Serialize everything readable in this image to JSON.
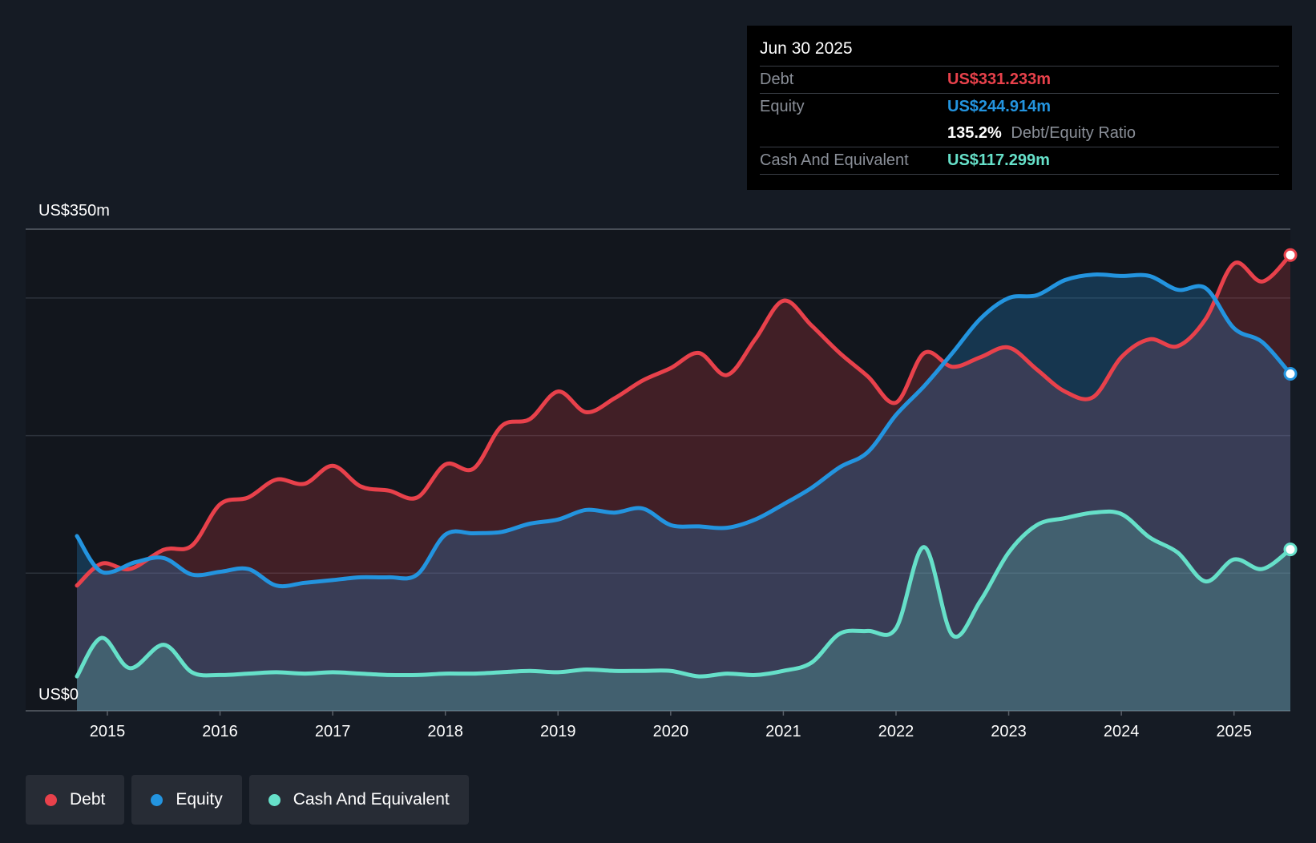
{
  "chart_data": {
    "type": "area",
    "title": "",
    "xlabel": "",
    "ylabel": "",
    "y_axis_labels": [
      "US$350m",
      "US$0"
    ],
    "ylim": [
      0,
      350
    ],
    "xlim": [
      2014.73,
      2025.5
    ],
    "x_ticks": [
      "2015",
      "2016",
      "2017",
      "2018",
      "2019",
      "2020",
      "2021",
      "2022",
      "2023",
      "2024",
      "2025"
    ],
    "gridlines": [
      0,
      100,
      200,
      300,
      350
    ],
    "series": [
      {
        "name": "Debt",
        "color": "#e8414b",
        "points": [
          [
            2014.73,
            91
          ],
          [
            2014.95,
            107
          ],
          [
            2015.2,
            103
          ],
          [
            2015.5,
            117
          ],
          [
            2015.75,
            120
          ],
          [
            2016.0,
            150
          ],
          [
            2016.25,
            155
          ],
          [
            2016.5,
            168
          ],
          [
            2016.75,
            165
          ],
          [
            2017.0,
            178
          ],
          [
            2017.25,
            163
          ],
          [
            2017.5,
            160
          ],
          [
            2017.75,
            155
          ],
          [
            2018.0,
            179
          ],
          [
            2018.25,
            176
          ],
          [
            2018.5,
            207
          ],
          [
            2018.75,
            212
          ],
          [
            2019.0,
            232
          ],
          [
            2019.25,
            217
          ],
          [
            2019.5,
            227
          ],
          [
            2019.75,
            240
          ],
          [
            2020.0,
            249
          ],
          [
            2020.25,
            260
          ],
          [
            2020.5,
            244
          ],
          [
            2020.75,
            270
          ],
          [
            2021.0,
            298
          ],
          [
            2021.25,
            280
          ],
          [
            2021.5,
            260
          ],
          [
            2021.75,
            243
          ],
          [
            2022.0,
            224
          ],
          [
            2022.25,
            260
          ],
          [
            2022.5,
            250
          ],
          [
            2022.75,
            257
          ],
          [
            2023.0,
            264
          ],
          [
            2023.25,
            248
          ],
          [
            2023.5,
            232
          ],
          [
            2023.75,
            228
          ],
          [
            2024.0,
            257
          ],
          [
            2024.25,
            270
          ],
          [
            2024.5,
            265
          ],
          [
            2024.75,
            285
          ],
          [
            2025.0,
            325
          ],
          [
            2025.25,
            312
          ],
          [
            2025.5,
            331.2
          ]
        ]
      },
      {
        "name": "Equity",
        "color": "#2394df",
        "points": [
          [
            2014.73,
            127
          ],
          [
            2014.95,
            101
          ],
          [
            2015.25,
            108
          ],
          [
            2015.5,
            111
          ],
          [
            2015.75,
            99
          ],
          [
            2016.0,
            101
          ],
          [
            2016.25,
            103
          ],
          [
            2016.5,
            91
          ],
          [
            2016.75,
            93
          ],
          [
            2017.0,
            95
          ],
          [
            2017.25,
            97
          ],
          [
            2017.5,
            97
          ],
          [
            2017.75,
            99
          ],
          [
            2018.0,
            128
          ],
          [
            2018.25,
            129
          ],
          [
            2018.5,
            130
          ],
          [
            2018.75,
            136
          ],
          [
            2019.0,
            139
          ],
          [
            2019.25,
            146
          ],
          [
            2019.5,
            144
          ],
          [
            2019.75,
            147
          ],
          [
            2020.0,
            135
          ],
          [
            2020.25,
            134
          ],
          [
            2020.5,
            133
          ],
          [
            2020.75,
            139
          ],
          [
            2021.0,
            150
          ],
          [
            2021.25,
            162
          ],
          [
            2021.5,
            177
          ],
          [
            2021.75,
            188
          ],
          [
            2022.0,
            215
          ],
          [
            2022.25,
            236
          ],
          [
            2022.5,
            260
          ],
          [
            2022.75,
            285
          ],
          [
            2023.0,
            300
          ],
          [
            2023.25,
            302
          ],
          [
            2023.5,
            313
          ],
          [
            2023.75,
            317
          ],
          [
            2024.0,
            316
          ],
          [
            2024.25,
            316
          ],
          [
            2024.5,
            306
          ],
          [
            2024.75,
            307
          ],
          [
            2025.0,
            278
          ],
          [
            2025.25,
            268
          ],
          [
            2025.5,
            244.9
          ]
        ]
      },
      {
        "name": "Cash And Equivalent",
        "color": "#66e0c9",
        "points": [
          [
            2014.73,
            25
          ],
          [
            2014.95,
            53
          ],
          [
            2015.2,
            31
          ],
          [
            2015.5,
            48
          ],
          [
            2015.75,
            28
          ],
          [
            2016.0,
            26
          ],
          [
            2016.25,
            27
          ],
          [
            2016.5,
            28
          ],
          [
            2016.75,
            27
          ],
          [
            2017.0,
            28
          ],
          [
            2017.25,
            27
          ],
          [
            2017.5,
            26
          ],
          [
            2017.75,
            26
          ],
          [
            2018.0,
            27
          ],
          [
            2018.25,
            27
          ],
          [
            2018.5,
            28
          ],
          [
            2018.75,
            29
          ],
          [
            2019.0,
            28
          ],
          [
            2019.25,
            30
          ],
          [
            2019.5,
            29
          ],
          [
            2019.75,
            29
          ],
          [
            2020.0,
            29
          ],
          [
            2020.25,
            25
          ],
          [
            2020.5,
            27
          ],
          [
            2020.75,
            26
          ],
          [
            2021.0,
            29
          ],
          [
            2021.25,
            35
          ],
          [
            2021.5,
            56
          ],
          [
            2021.75,
            58
          ],
          [
            2022.0,
            60
          ],
          [
            2022.25,
            119
          ],
          [
            2022.5,
            55
          ],
          [
            2022.75,
            80
          ],
          [
            2023.0,
            115
          ],
          [
            2023.25,
            135
          ],
          [
            2023.5,
            140
          ],
          [
            2023.75,
            144
          ],
          [
            2024.0,
            143
          ],
          [
            2024.25,
            126
          ],
          [
            2024.5,
            115
          ],
          [
            2024.75,
            94
          ],
          [
            2025.0,
            110
          ],
          [
            2025.25,
            103
          ],
          [
            2025.5,
            117.3
          ]
        ]
      }
    ]
  },
  "tooltip": {
    "date": "Jun 30 2025",
    "debt_label": "Debt",
    "debt_value": "US$331.233m",
    "equity_label": "Equity",
    "equity_value": "US$244.914m",
    "ratio_value": "135.2%",
    "ratio_label": "Debt/Equity Ratio",
    "cash_label": "Cash And Equivalent",
    "cash_value": "US$117.299m"
  },
  "legend": {
    "debt": "Debt",
    "equity": "Equity",
    "cash": "Cash And Equivalent"
  },
  "colors": {
    "debt": "#e8414b",
    "equity": "#2394df",
    "cash": "#66e0c9",
    "background": "#151b24"
  }
}
